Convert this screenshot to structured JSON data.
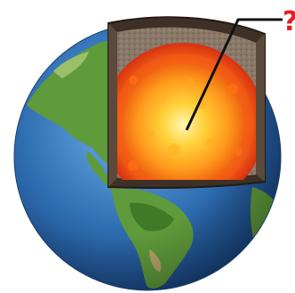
{
  "diagram": {
    "callout_text": "?",
    "layers": [
      "crust",
      "mantle",
      "outer-core",
      "inner-core"
    ]
  },
  "colors": {
    "ocean": "#2f6fb3",
    "land": "#5f9a3b",
    "crust": "#4a3a2c",
    "mantle": "#8a7868",
    "outer_core": "#e8471a",
    "inner_core": "#ffd23a",
    "callout": "#e02020"
  }
}
